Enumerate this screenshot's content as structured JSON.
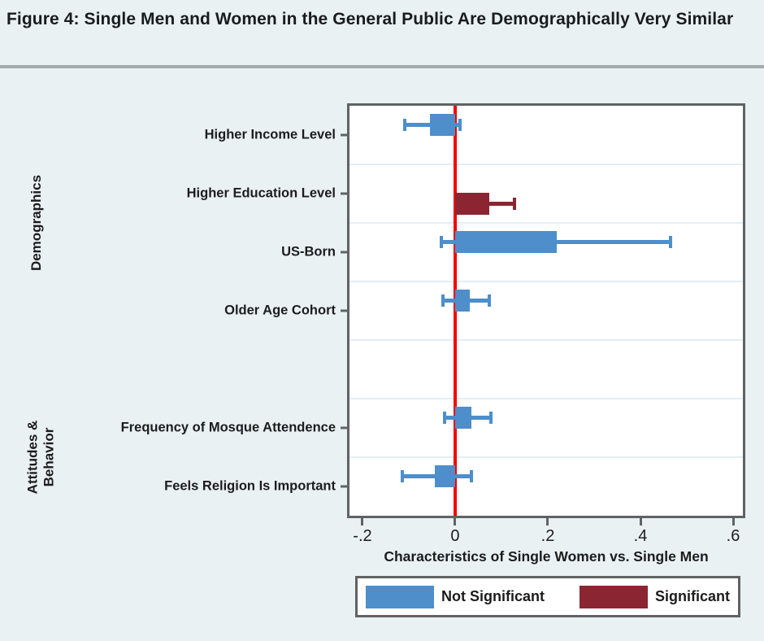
{
  "page": {
    "title": "Figure 4: Single Men and Women in the General Public Are Demographically Very Similar"
  },
  "chart_data": {
    "type": "bar",
    "orientation": "horizontal",
    "xlabel": "Characteristics of Single Women vs. Single Men",
    "xlim": [
      -0.228,
      0.621
    ],
    "x_ticks": [
      -0.2,
      0,
      0.2,
      0.4,
      0.6
    ],
    "x_tick_labels": [
      "-.2",
      "0",
      ".2",
      ".4",
      ".6"
    ],
    "reference_line_x": 0,
    "grid": "between-rows",
    "num_rows": 7,
    "legend_position": "below",
    "groups": [
      {
        "label": "Demographics",
        "row_start": 0,
        "row_end": 3
      },
      {
        "label": "Attitudes &\nBehavior",
        "row_start": 5,
        "row_end": 6
      }
    ],
    "series_legend": [
      {
        "name": "Not Significant",
        "color": "#4d8ecb"
      },
      {
        "name": "Significant",
        "color": "#8b2532"
      }
    ],
    "items": [
      {
        "label": "Higher Income Level",
        "row": 0,
        "value": -0.055,
        "ci_low": -0.108,
        "ci_high": 0.01,
        "significant": false
      },
      {
        "label": "Higher Education Level",
        "row": 1,
        "value": 0.073,
        "ci_low": 0.018,
        "ci_high": 0.128,
        "significant": true
      },
      {
        "label": "US-Born",
        "row": 2,
        "value": 0.22,
        "ci_low": -0.03,
        "ci_high": 0.465,
        "significant": false
      },
      {
        "label": "Older Age Cohort",
        "row": 3,
        "value": 0.032,
        "ci_low": -0.026,
        "ci_high": 0.073,
        "significant": false
      },
      {
        "label": "Frequency of Mosque Attendence",
        "row": 5,
        "value": 0.035,
        "ci_low": -0.022,
        "ci_high": 0.077,
        "significant": false
      },
      {
        "label": "Feels Religion Is Important",
        "row": 6,
        "value": -0.044,
        "ci_low": -0.114,
        "ci_high": 0.035,
        "significant": false
      }
    ]
  },
  "colors": {
    "not_significant": "#4d8ecb",
    "significant": "#8b2532",
    "reference_line": "#f40000",
    "background": "#eaf1f3",
    "plot_background": "#ffffff",
    "border": "#606363",
    "gridline": "#e3eef4",
    "text": "#1c1c1c",
    "divider": "#a6abab"
  }
}
